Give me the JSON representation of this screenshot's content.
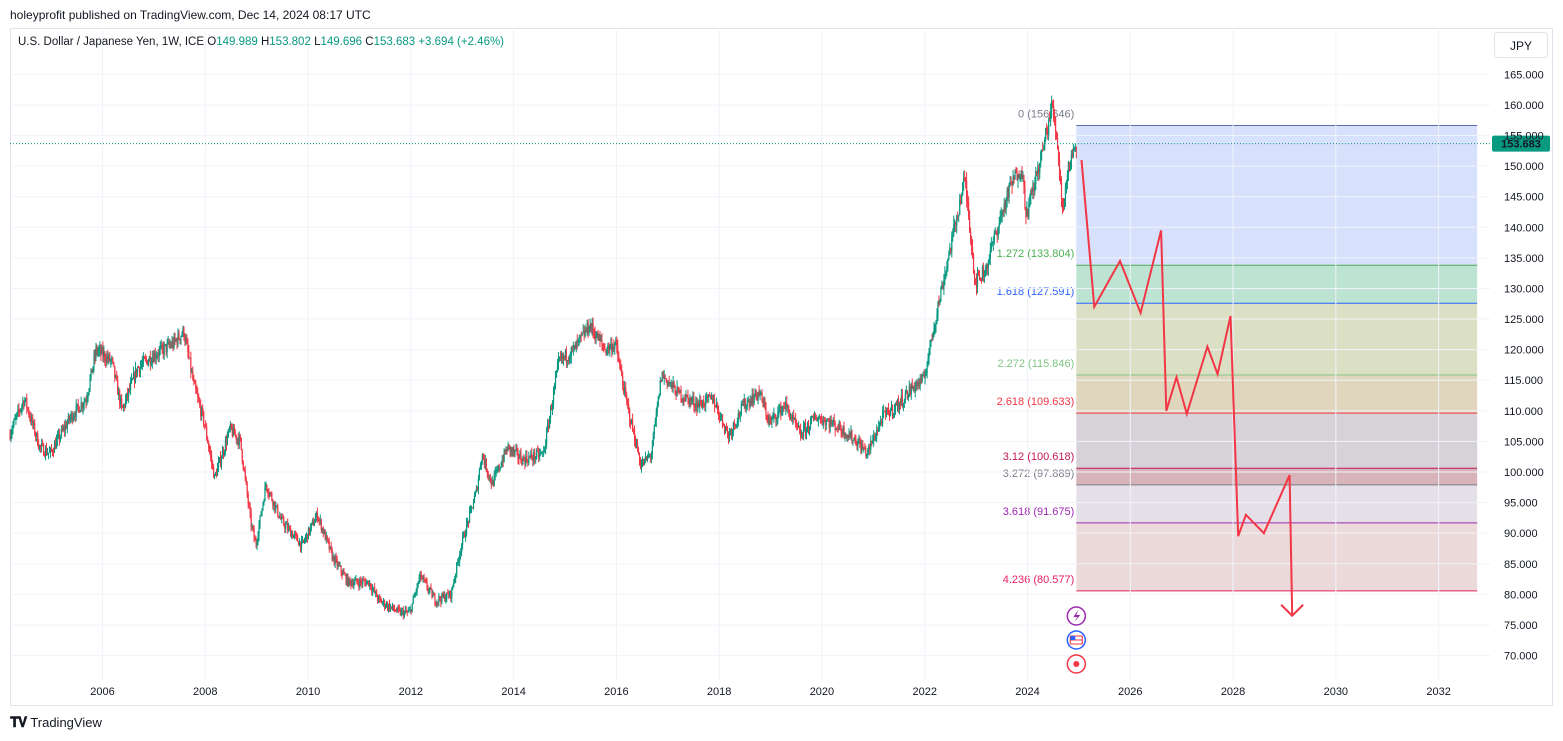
{
  "header": {
    "published": "holeyprofit published on TradingView.com, Dec 14, 2024 08:17 UTC"
  },
  "legend": {
    "symbol": "U.S. Dollar / Japanese Yen, 1W, ICE",
    "o_label": "O",
    "o": "149.989",
    "h_label": "H",
    "h": "153.802",
    "l_label": "L",
    "l": "149.696",
    "c_label": "C",
    "c": "153.683",
    "change": "+3.694 (+2.46%)"
  },
  "currency_button": "JPY",
  "footer": {
    "brand": "TradingView"
  },
  "colors": {
    "up": "#089981",
    "down": "#f23645",
    "forecast": "#f23645",
    "price_tag": "#089981"
  },
  "chart_data": {
    "type": "candlestick",
    "title": "U.S. Dollar / Japanese Yen, 1W, ICE",
    "ylim": [
      66,
      168
    ],
    "xlim": [
      2004.2,
      2033.0
    ],
    "y_ticks": [
      165,
      160,
      155,
      150,
      145,
      140,
      135,
      130,
      125,
      120,
      115,
      110,
      105,
      100,
      95,
      90,
      85,
      80,
      75,
      70
    ],
    "y_tick_labels": [
      "165.000",
      "160.000",
      "155.000",
      "150.000",
      "145.000",
      "140.000",
      "135.000",
      "130.000",
      "125.000",
      "120.000",
      "115.000",
      "110.000",
      "105.000",
      "100.000",
      "95.000",
      "90.000",
      "85.000",
      "80.000",
      "75.000",
      "70.000"
    ],
    "x_ticks": [
      2006,
      2008,
      2010,
      2012,
      2014,
      2016,
      2018,
      2020,
      2022,
      2024,
      2026,
      2028,
      2030,
      2032
    ],
    "x_tick_labels": [
      "2006",
      "2008",
      "2010",
      "2012",
      "2014",
      "2016",
      "2018",
      "2020",
      "2022",
      "2024",
      "2026",
      "2028",
      "2030",
      "2032"
    ],
    "last_price": 153.683,
    "last_price_label": "153.683",
    "price_path": [
      [
        2004.2,
        106
      ],
      [
        2004.5,
        112
      ],
      [
        2004.8,
        104
      ],
      [
        2005.0,
        103
      ],
      [
        2005.4,
        109
      ],
      [
        2005.7,
        112
      ],
      [
        2005.9,
        120
      ],
      [
        2006.2,
        118
      ],
      [
        2006.4,
        110
      ],
      [
        2006.7,
        117
      ],
      [
        2007.0,
        119
      ],
      [
        2007.4,
        121
      ],
      [
        2007.6,
        123
      ],
      [
        2007.8,
        114
      ],
      [
        2008.0,
        108
      ],
      [
        2008.2,
        99
      ],
      [
        2008.5,
        107
      ],
      [
        2008.7,
        105
      ],
      [
        2008.9,
        92
      ],
      [
        2009.0,
        88
      ],
      [
        2009.2,
        98
      ],
      [
        2009.5,
        92
      ],
      [
        2009.9,
        88
      ],
      [
        2010.2,
        93
      ],
      [
        2010.5,
        86
      ],
      [
        2010.8,
        82
      ],
      [
        2011.2,
        82
      ],
      [
        2011.4,
        79
      ],
      [
        2011.8,
        77
      ],
      [
        2012.0,
        77
      ],
      [
        2012.2,
        83
      ],
      [
        2012.5,
        79
      ],
      [
        2012.8,
        80
      ],
      [
        2013.0,
        88
      ],
      [
        2013.3,
        97
      ],
      [
        2013.4,
        103
      ],
      [
        2013.6,
        98
      ],
      [
        2013.9,
        104
      ],
      [
        2014.2,
        102
      ],
      [
        2014.6,
        103
      ],
      [
        2014.9,
        118
      ],
      [
        2015.2,
        120
      ],
      [
        2015.5,
        124
      ],
      [
        2015.8,
        120
      ],
      [
        2016.0,
        121
      ],
      [
        2016.2,
        112
      ],
      [
        2016.5,
        101
      ],
      [
        2016.7,
        103
      ],
      [
        2016.9,
        116
      ],
      [
        2017.2,
        113
      ],
      [
        2017.6,
        111
      ],
      [
        2017.9,
        112
      ],
      [
        2018.2,
        106
      ],
      [
        2018.5,
        111
      ],
      [
        2018.8,
        113
      ],
      [
        2019.0,
        108
      ],
      [
        2019.3,
        111
      ],
      [
        2019.6,
        106
      ],
      [
        2019.9,
        109
      ],
      [
        2020.2,
        108
      ],
      [
        2020.4,
        107
      ],
      [
        2020.7,
        105
      ],
      [
        2020.9,
        103
      ],
      [
        2021.2,
        109
      ],
      [
        2021.5,
        111
      ],
      [
        2021.8,
        114
      ],
      [
        2022.0,
        115
      ],
      [
        2022.2,
        124
      ],
      [
        2022.5,
        136
      ],
      [
        2022.8,
        148
      ],
      [
        2022.9,
        140
      ],
      [
        2023.0,
        131
      ],
      [
        2023.2,
        133
      ],
      [
        2023.4,
        139
      ],
      [
        2023.7,
        147
      ],
      [
        2023.9,
        150
      ],
      [
        2024.0,
        142
      ],
      [
        2024.3,
        152
      ],
      [
        2024.5,
        160
      ],
      [
        2024.6,
        154
      ],
      [
        2024.7,
        143
      ],
      [
        2024.8,
        149
      ],
      [
        2024.95,
        153.683
      ]
    ],
    "forecast_path": [
      [
        2025.05,
        151
      ],
      [
        2025.3,
        127
      ],
      [
        2025.8,
        134.5
      ],
      [
        2026.2,
        126
      ],
      [
        2026.6,
        139.5
      ],
      [
        2026.7,
        110
      ],
      [
        2026.9,
        115.5
      ],
      [
        2027.1,
        109.5
      ],
      [
        2027.5,
        120.5
      ],
      [
        2027.7,
        116
      ],
      [
        2027.95,
        125.5
      ],
      [
        2028.1,
        89.5
      ],
      [
        2028.25,
        93
      ],
      [
        2028.6,
        90
      ],
      [
        2029.1,
        99.5
      ],
      [
        2029.15,
        76.5
      ]
    ],
    "fib_range": {
      "x_start": 2024.95,
      "x_end": 2032.75
    },
    "fib_levels": [
      {
        "ratio": "0",
        "value": 156.646,
        "label": "0 (156.646)",
        "line": "#5b6aa8",
        "fill": "#c9d7fb",
        "text": "#787b86"
      },
      {
        "ratio": "1.272",
        "value": 133.804,
        "label": "1.272 (133.804)",
        "line": "#4caf50",
        "fill": "#a7d9c4",
        "text": "#4caf50"
      },
      {
        "ratio": "1.618",
        "value": 127.591,
        "label": "1.618 (127.591)",
        "line": "#2962ff",
        "fill": "#cfd6b0",
        "text": "#2962ff"
      },
      {
        "ratio": "2.272",
        "value": 115.846,
        "label": "2.272 (115.846)",
        "line": "#81c784",
        "fill": "#d5c8a8",
        "text": "#81c784"
      },
      {
        "ratio": "2.618",
        "value": 109.633,
        "label": "2.618 (109.633)",
        "line": "#f23645",
        "fill": "#c9c2cb",
        "text": "#f23645"
      },
      {
        "ratio": "3.12",
        "value": 100.618,
        "label": "3.12 (100.618)",
        "line": "#c2185b",
        "fill": "#c99aa3",
        "text": "#c2185b"
      },
      {
        "ratio": "3.272",
        "value": 97.889,
        "label": "3.272 (97.889)",
        "line": "#787b86",
        "fill": "#dcd5e0",
        "text": "#787b86"
      },
      {
        "ratio": "3.618",
        "value": 91.675,
        "label": "3.618 (91.675)",
        "line": "#9c27b0",
        "fill": "#e6cdcf",
        "text": "#9c27b0"
      },
      {
        "ratio": "4.236",
        "value": 80.577,
        "label": "4.236 (80.577)",
        "line": "#e91e63",
        "fill": "none",
        "text": "#e91e63"
      }
    ],
    "event_icons": [
      "lightning-icon",
      "us-flag-icon",
      "target-icon"
    ]
  }
}
